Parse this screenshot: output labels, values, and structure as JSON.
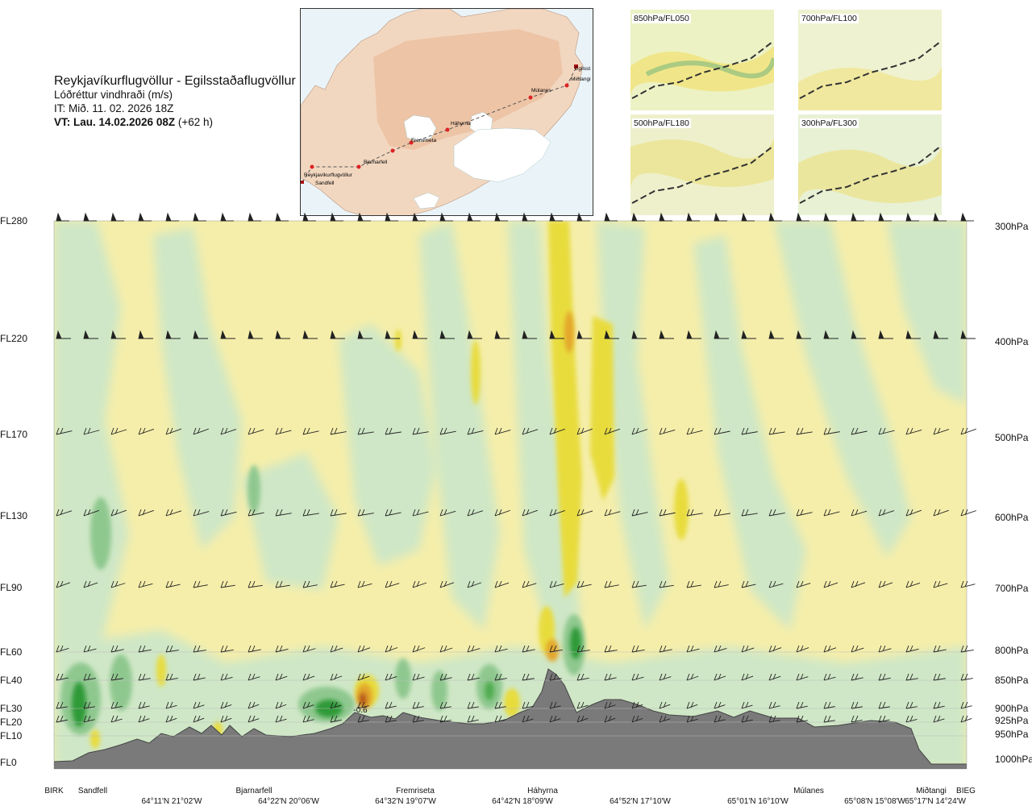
{
  "header": {
    "title": "Reykjavíkurflugvöllur - Egilsstaðaflugvöllur",
    "parameter": "Lóðréttur vindhraði (m/s)",
    "it": "IT: Mið. 11. 02. 2026 18Z",
    "vt_bold": "VT: Lau. 14.02.2026 08Z",
    "vt_rest": "(+62 h)"
  },
  "map": {
    "waypoints": [
      "Reykjavíkurflugvöllur",
      "Sandfell",
      "Bjarnarfell",
      "Fremriseta",
      "Háhyrna",
      "Múlanes",
      "Miðtangi",
      "Egilsst"
    ]
  },
  "thumbnails": [
    {
      "label": "850hPa/FL050"
    },
    {
      "label": "700hPa/FL100"
    },
    {
      "label": "500hPa/FL180"
    },
    {
      "label": "300hPa/FL300"
    }
  ],
  "chart_data": {
    "type": "heatmap",
    "title": "Lóðréttur vindhraði (m/s)",
    "left_axis_labels": [
      "FL280",
      "FL220",
      "FL170",
      "FL130",
      "FL90",
      "FL60",
      "FL40",
      "FL30",
      "FL20",
      "FL10",
      "FL0"
    ],
    "right_axis_labels": [
      "300hPa",
      "400hPa",
      "500hPa",
      "600hPa",
      "700hPa",
      "800hPa",
      "850hPa",
      "900hPa",
      "925hPa",
      "950hPa",
      "1000hPa"
    ],
    "bottom_waypoints": [
      "BIRK",
      "Sandfell",
      "Bjarnarfell",
      "Fremriseta",
      "Háhyrna",
      "Múlanes",
      "Miðtangi",
      "BIEG"
    ],
    "bottom_coords": [
      "64°11'N 21°02'W",
      "64°22'N 20°06'W",
      "64°32'N 19°07'W",
      "64°42'N 18°09'W",
      "64°52'N 17°10'W",
      "65°01'N 16°10'W",
      "65°08'N 15°08'W",
      "65°17'N 14°24'W"
    ],
    "annotation": "-0.6",
    "colors": {
      "strong_down": "#3a9a3a",
      "mid_down": "#7fc07f",
      "weak_down": "#cfe7c6",
      "neutral": "#fdfde6",
      "weak_up": "#f5eeaa",
      "mid_up": "#e8dc3c",
      "strong_up": "#e3a62a",
      "max_up": "#b7531c",
      "terrain": "#7a7a7a"
    }
  }
}
